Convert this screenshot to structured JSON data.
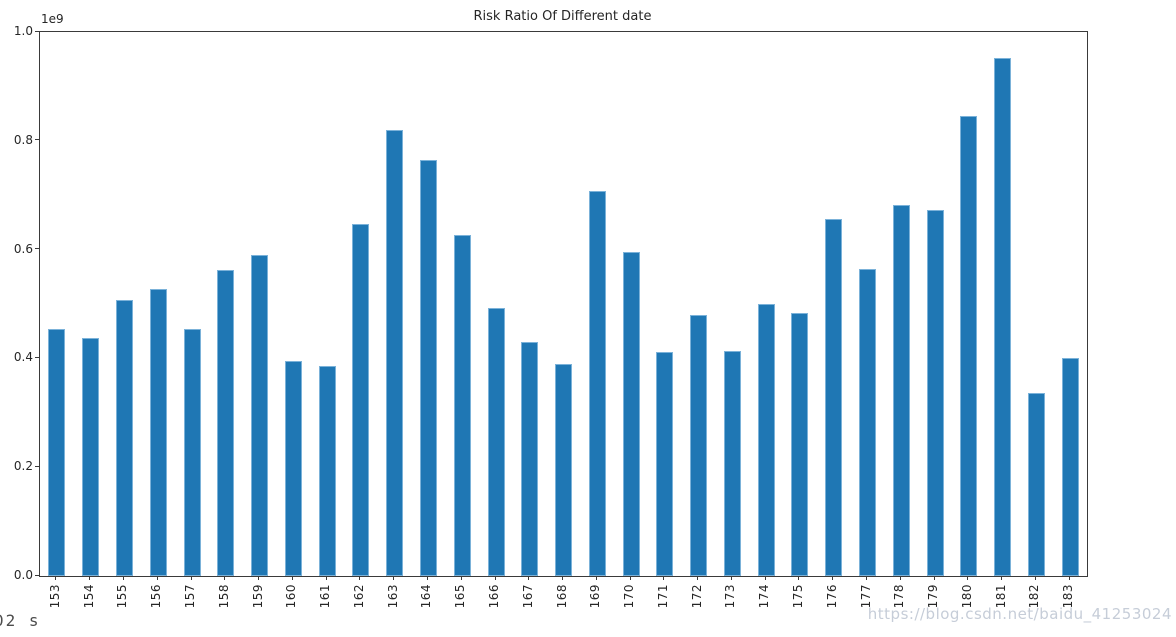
{
  "watermark": "https://blog.csdn.net/baidu_41253024",
  "console_text": "02 s",
  "chart_data": {
    "type": "bar",
    "title": "Risk Ratio Of Different date",
    "xlabel": "",
    "ylabel": "",
    "y_offset_text": "1e9",
    "value_unit": "1e9 (values below are in units of 1,000,000,000)",
    "categories": [
      "153",
      "154",
      "155",
      "156",
      "157",
      "158",
      "159",
      "160",
      "161",
      "162",
      "163",
      "164",
      "165",
      "166",
      "167",
      "168",
      "169",
      "170",
      "171",
      "172",
      "173",
      "174",
      "175",
      "176",
      "177",
      "178",
      "179",
      "180",
      "181",
      "182",
      "183"
    ],
    "values": [
      0.455,
      0.437,
      0.508,
      0.527,
      0.455,
      0.563,
      0.591,
      0.396,
      0.387,
      0.648,
      0.82,
      0.764,
      0.627,
      0.492,
      0.43,
      0.389,
      0.707,
      0.595,
      0.411,
      0.48,
      0.414,
      0.501,
      0.483,
      0.657,
      0.565,
      0.682,
      0.672,
      0.845,
      0.952,
      0.336,
      0.4
    ],
    "ylim": [
      0.0,
      1.0
    ],
    "yticks": [
      "0.0",
      "0.2",
      "0.4",
      "0.6",
      "0.8",
      "1.0"
    ],
    "x_tick_rotation": 90,
    "grid": false,
    "legend": "none",
    "bar_color": "#1f77b4"
  }
}
